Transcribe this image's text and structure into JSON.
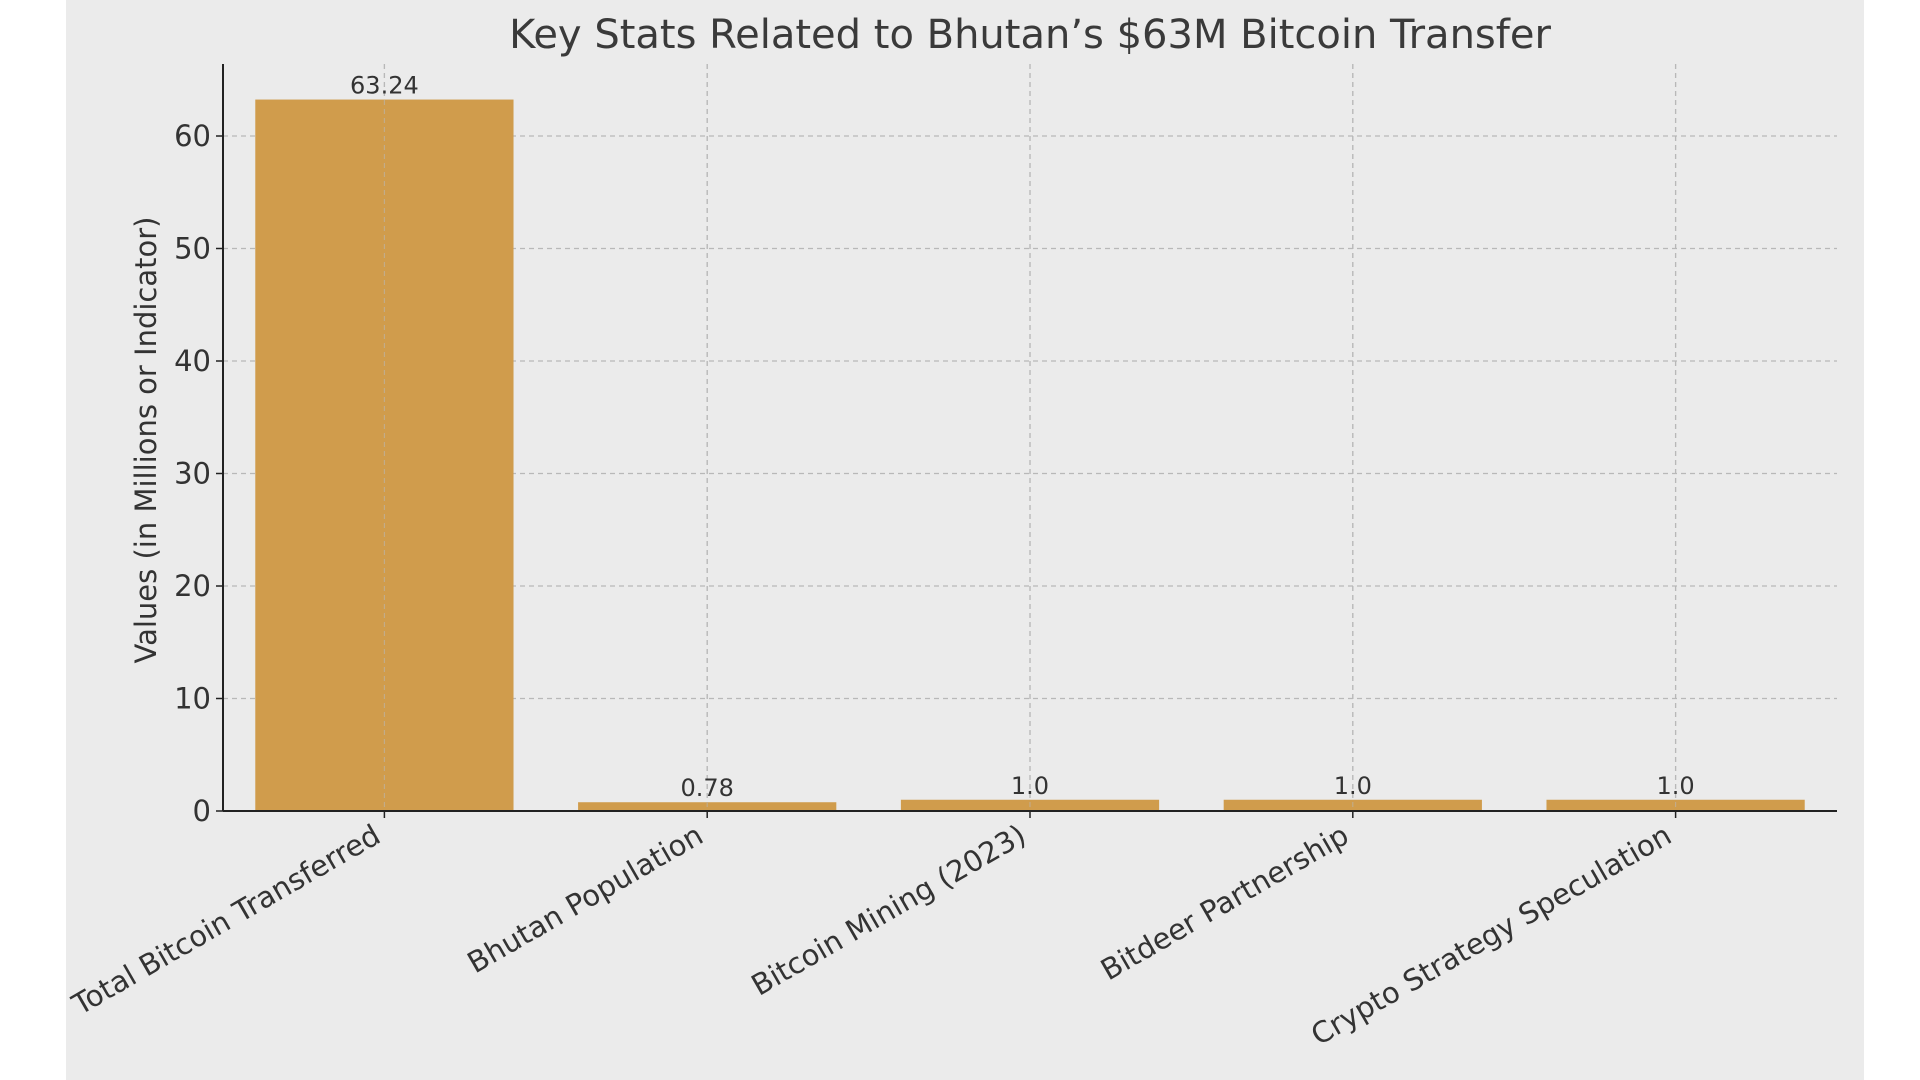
{
  "colors": {
    "page_background": "#ffffff",
    "plot_background": "#ebebeb",
    "bar": "#d09c4c",
    "grid": "#b8b8b8",
    "axis": "#222222",
    "text": "#333333"
  },
  "chart_data": {
    "type": "bar",
    "title": "Key Stats Related to Bhutan’s $63M Bitcoin Transfer",
    "xlabel": "",
    "ylabel": "Values (in Millions or Indicator)",
    "categories": [
      "Total Bitcoin Transferred",
      "Bhutan Population",
      "Bitcoin Mining (2023)",
      "Bitdeer Partnership",
      "Crypto Strategy Speculation"
    ],
    "values": [
      63.24,
      0.78,
      1.0,
      1.0,
      1.0
    ],
    "data_labels": [
      "63.24",
      "0.78",
      "1.0",
      "1.0",
      "1.0"
    ],
    "ylim": [
      0,
      66.4
    ],
    "yticks": [
      0,
      10,
      20,
      30,
      40,
      50,
      60
    ],
    "grid": true,
    "grid_style": "dashed",
    "legend": "none"
  }
}
